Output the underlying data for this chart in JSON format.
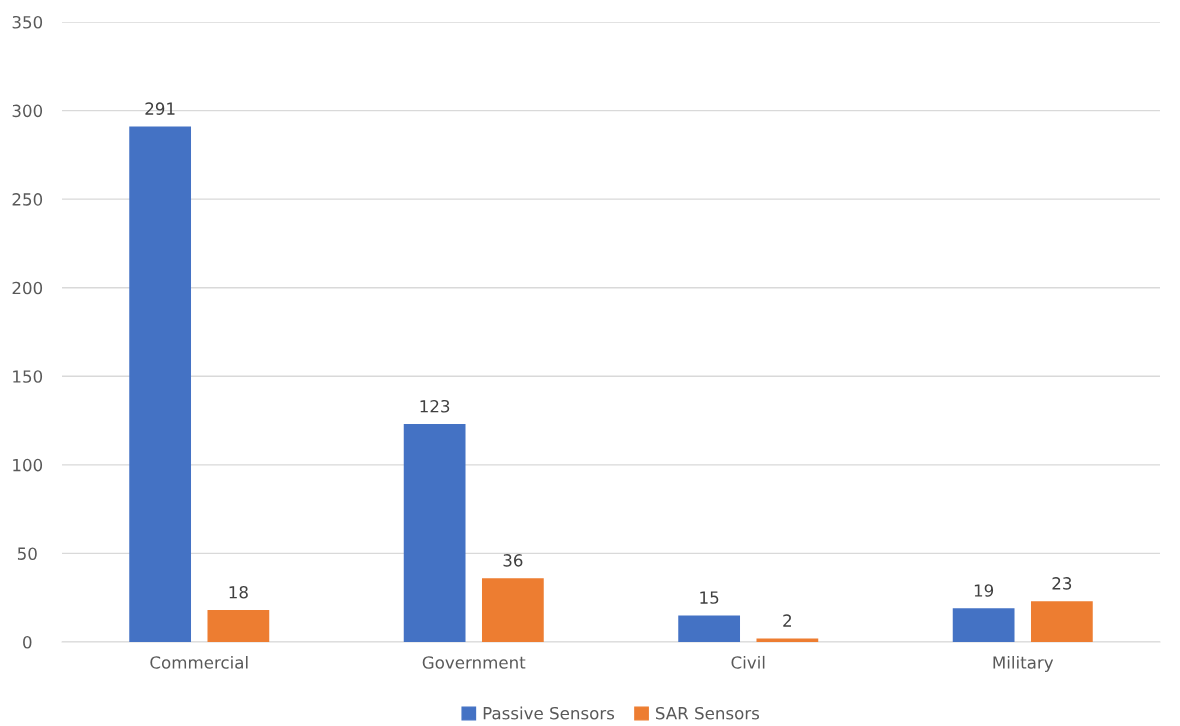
{
  "chart_data": {
    "type": "bar",
    "categories": [
      "Commercial",
      "Government",
      "Civil",
      "Military"
    ],
    "series": [
      {
        "name": "Passive Sensors",
        "color": "#4472c4",
        "values": [
          291,
          123,
          15,
          19
        ]
      },
      {
        "name": "SAR Sensors",
        "color": "#ed7d31",
        "values": [
          18,
          36,
          2,
          23
        ]
      }
    ],
    "ylim": [
      0,
      350
    ],
    "yticks": [
      0,
      50,
      100,
      150,
      200,
      250,
      300,
      350
    ],
    "grid": "y",
    "legend": "bottom",
    "data_labels": true
  }
}
